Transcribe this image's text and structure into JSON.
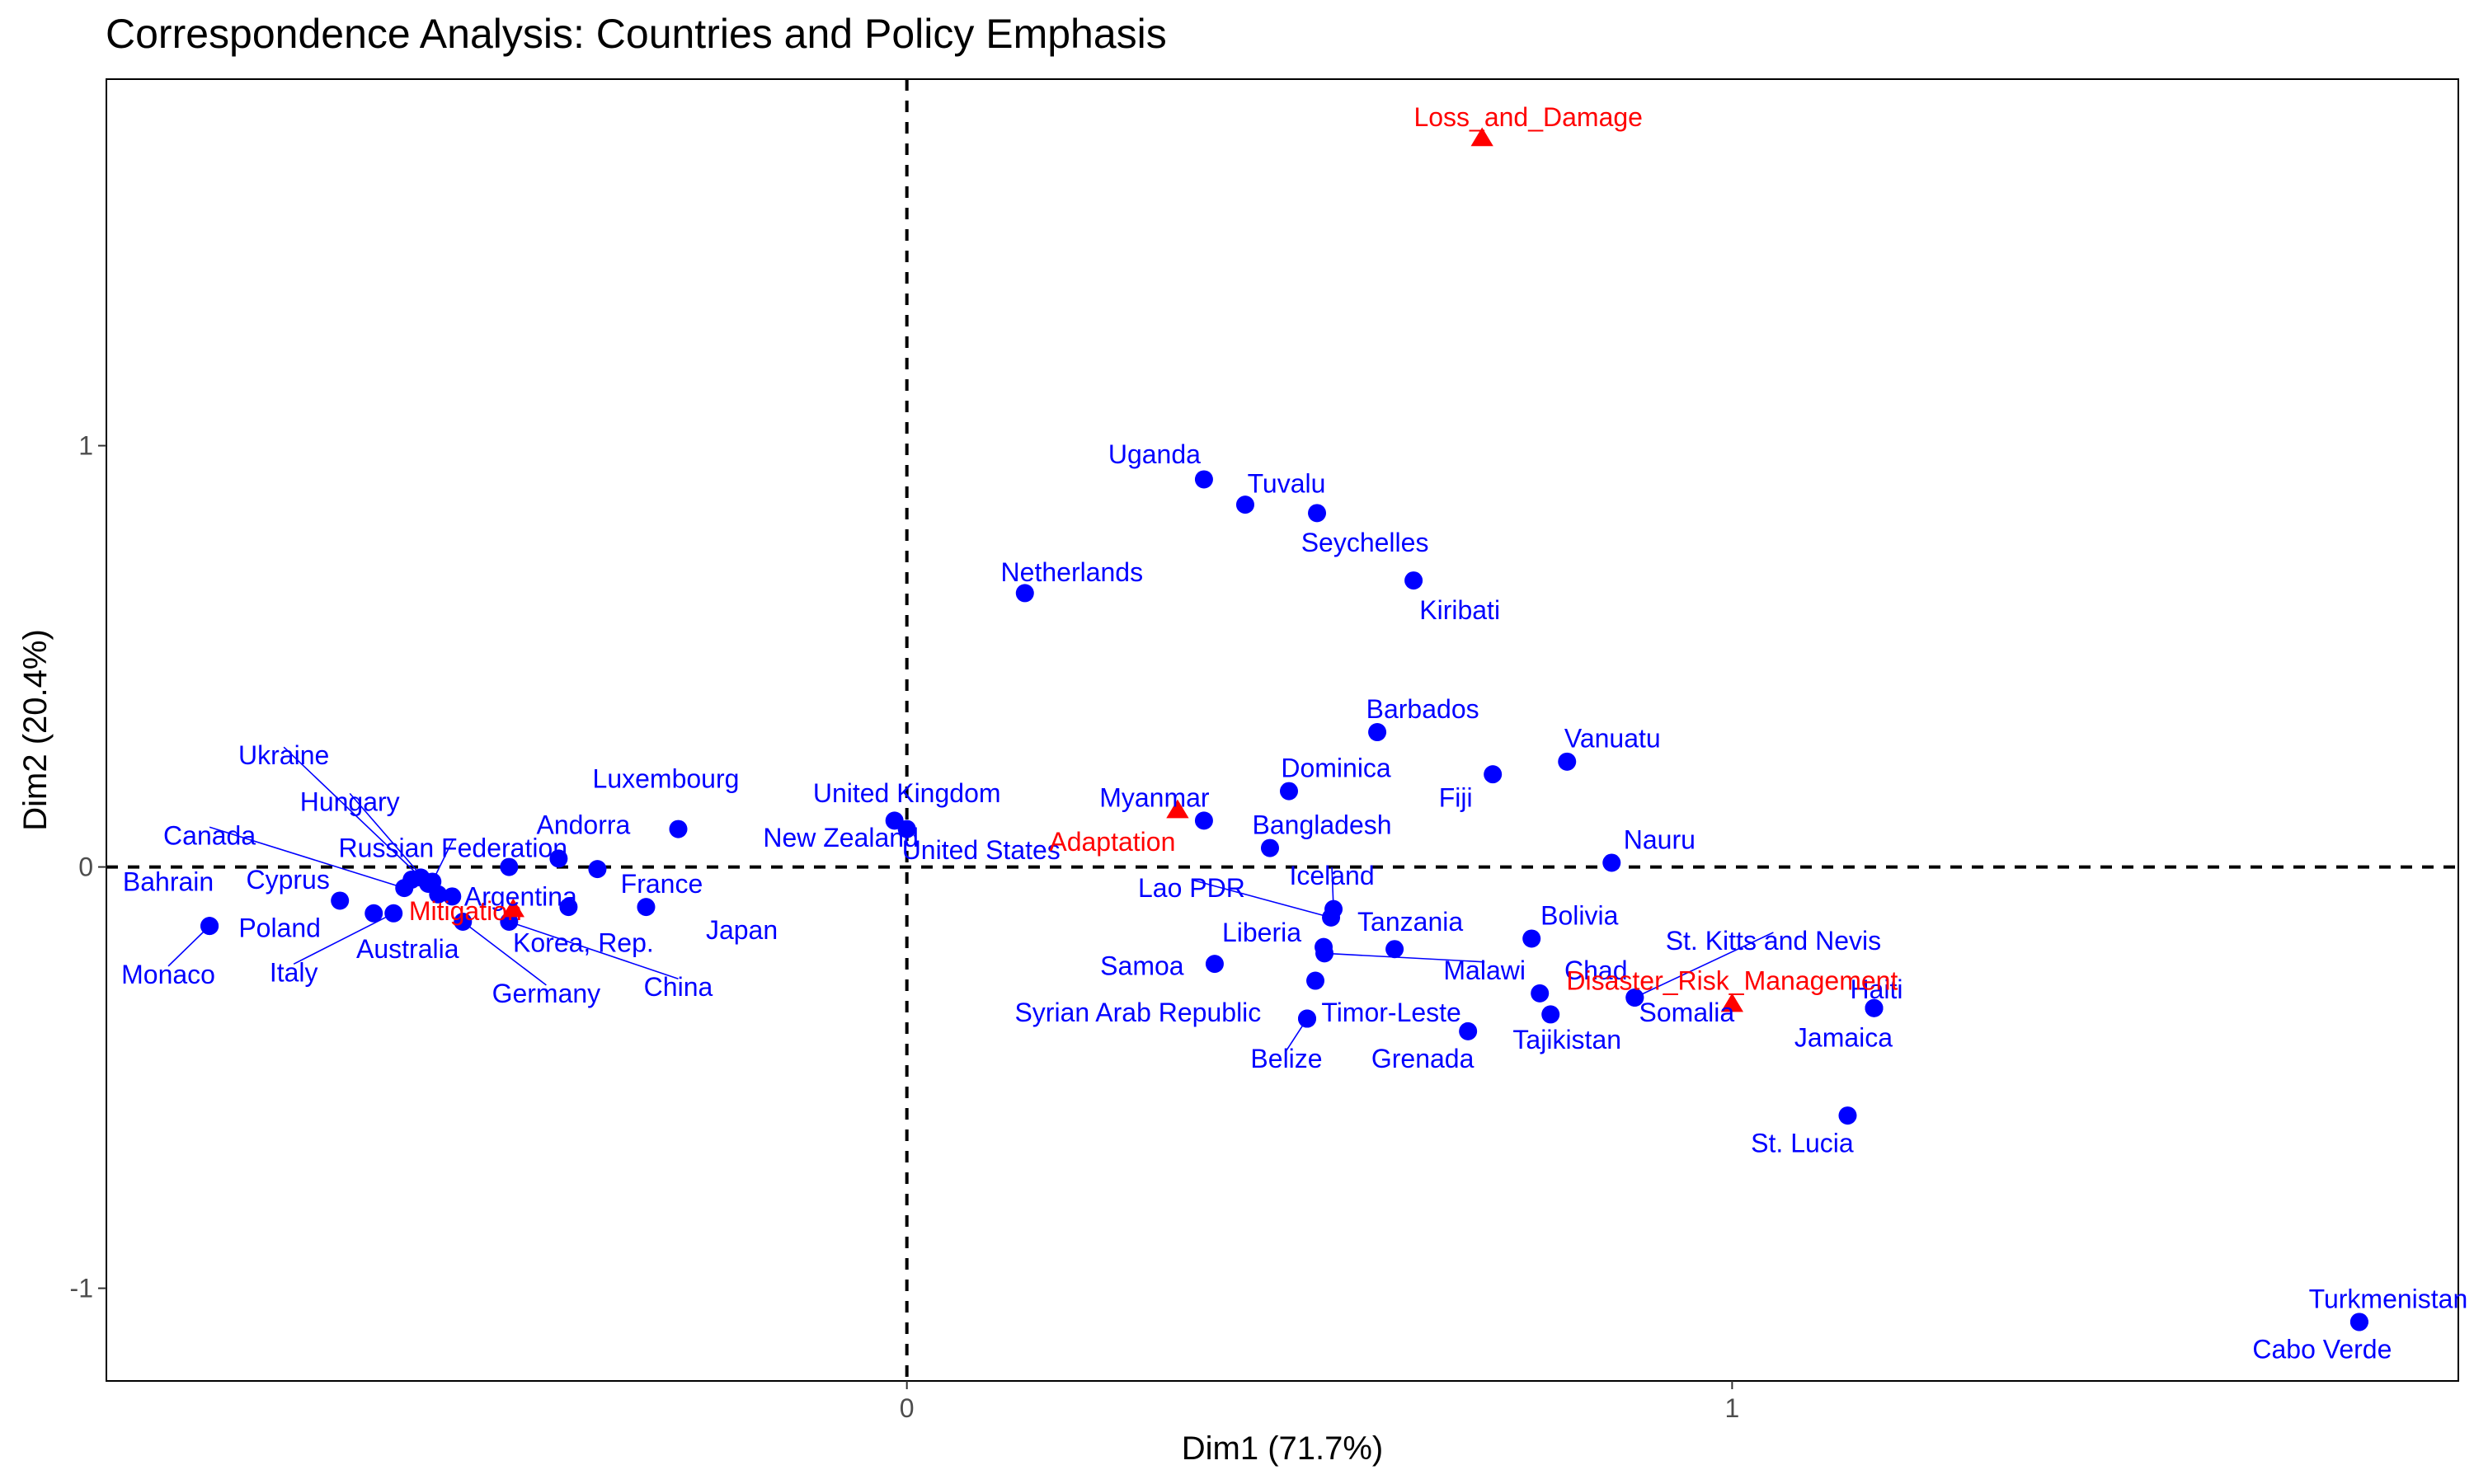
{
  "chart_data": {
    "type": "scatter",
    "title": "Correspondence Analysis: Countries and Policy Emphasis",
    "xlabel": "Dim1 (71.7%)",
    "ylabel": "Dim2 (20.4%)",
    "xlim": [
      -0.97,
      1.88
    ],
    "ylim": [
      -1.22,
      1.87
    ],
    "xticks": [
      0,
      1
    ],
    "yticks": [
      -1,
      0,
      1
    ],
    "xtick_labels": [
      "0",
      "1"
    ],
    "ytick_labels": [
      "-1",
      "0",
      "1"
    ],
    "grid": false,
    "reference_lines": {
      "x": 0,
      "y": 0
    },
    "colors": {
      "rows": "#0000ff",
      "columns": "#ff0000",
      "axes": "#000000"
    },
    "series": [
      {
        "role": "rows",
        "marker": "circle",
        "points": [
          {
            "label": "Uganda",
            "x": 0.36,
            "y": 0.92,
            "lx": 0.3,
            "ly": 0.98
          },
          {
            "label": "Tuvalu",
            "x": 0.41,
            "y": 0.86,
            "lx": 0.46,
            "ly": 0.91
          },
          {
            "label": "Seychelles",
            "x": 0.497,
            "y": 0.84,
            "lx": 0.555,
            "ly": 0.77
          },
          {
            "label": "Kiribati",
            "x": 0.614,
            "y": 0.68,
            "lx": 0.67,
            "ly": 0.61
          },
          {
            "label": "Netherlands",
            "x": 0.143,
            "y": 0.65,
            "lx": 0.2,
            "ly": 0.7
          },
          {
            "label": "Barbados",
            "x": 0.57,
            "y": 0.32,
            "lx": 0.625,
            "ly": 0.375
          },
          {
            "label": "Vanuatu",
            "x": 0.8,
            "y": 0.25,
            "lx": 0.855,
            "ly": 0.305
          },
          {
            "label": "Fiji",
            "x": 0.71,
            "y": 0.22,
            "lx": 0.665,
            "ly": 0.165
          },
          {
            "label": "Dominica",
            "x": 0.463,
            "y": 0.18,
            "lx": 0.52,
            "ly": 0.235
          },
          {
            "label": "Myanmar",
            "x": 0.36,
            "y": 0.11,
            "lx": 0.3,
            "ly": 0.165
          },
          {
            "label": "United States",
            "x": -0.015,
            "y": 0.11,
            "lx": 0.09,
            "ly": 0.04
          },
          {
            "label": "Bangladesh",
            "x": 0.44,
            "y": 0.045,
            "lx": 0.503,
            "ly": 0.1
          },
          {
            "label": "Nauru",
            "x": 0.854,
            "y": 0.01,
            "lx": 0.912,
            "ly": 0.065
          },
          {
            "label": "Iceland",
            "x": 0.517,
            "y": -0.1,
            "lx": 0.515,
            "ly": -0.02,
            "leader": true
          },
          {
            "label": "Lao PDR",
            "x": 0.514,
            "y": -0.12,
            "lx": 0.345,
            "ly": -0.05,
            "leader": true
          },
          {
            "label": "Tanzania",
            "x": 0.591,
            "y": -0.195,
            "lx": 0.61,
            "ly": -0.13
          },
          {
            "label": "Bolivia",
            "x": 0.757,
            "y": -0.17,
            "lx": 0.815,
            "ly": -0.115
          },
          {
            "label": "Liberia",
            "x": 0.505,
            "y": -0.19,
            "lx": 0.43,
            "ly": -0.155
          },
          {
            "label": "Samoa",
            "x": 0.373,
            "y": -0.23,
            "lx": 0.285,
            "ly": -0.235
          },
          {
            "label": "Malawi",
            "x": 0.506,
            "y": -0.205,
            "lx": 0.7,
            "ly": -0.245,
            "leader": true
          },
          {
            "label": "St. Kitts and Nevis",
            "x": 0.882,
            "y": -0.31,
            "lx": 1.05,
            "ly": -0.175,
            "leader": true
          },
          {
            "label": "Chad",
            "x": 0.767,
            "y": -0.3,
            "lx": 0.835,
            "ly": -0.245
          },
          {
            "label": "Timor-Leste",
            "x": 0.495,
            "y": -0.27,
            "lx": 0.587,
            "ly": -0.345
          },
          {
            "label": "Syrian Arab Republic",
            "x": 0.485,
            "y": -0.36,
            "lx": 0.28,
            "ly": -0.345
          },
          {
            "label": "Tajikistan",
            "x": 0.78,
            "y": -0.35,
            "lx": 0.8,
            "ly": -0.41
          },
          {
            "label": "Grenada",
            "x": 0.68,
            "y": -0.39,
            "lx": 0.625,
            "ly": -0.455
          },
          {
            "label": "Belize",
            "x": 0.485,
            "y": -0.36,
            "lx": 0.46,
            "ly": -0.455,
            "leader": true
          },
          {
            "label": "Somalia",
            "x": 0.882,
            "y": -0.31,
            "lx": 0.945,
            "ly": -0.345
          },
          {
            "label": "Haiti",
            "x": 1.172,
            "y": -0.335,
            "lx": 1.175,
            "ly": -0.29
          },
          {
            "label": "Jamaica",
            "x": 1.172,
            "y": -0.335,
            "lx": 1.135,
            "ly": -0.405
          },
          {
            "label": "St. Lucia",
            "x": 1.14,
            "y": -0.59,
            "lx": 1.085,
            "ly": -0.655
          },
          {
            "label": "Turkmenistan",
            "x": 1.76,
            "y": -1.08,
            "lx": 1.795,
            "ly": -1.025
          },
          {
            "label": "Cabo Verde",
            "x": 1.76,
            "y": -1.08,
            "lx": 1.715,
            "ly": -1.145
          },
          {
            "label": "United Kingdom",
            "x": 0.0,
            "y": 0.09,
            "lx": 0.0,
            "ly": 0.175
          },
          {
            "label": "New Zealand",
            "x": -0.277,
            "y": 0.09,
            "lx": -0.08,
            "ly": 0.07
          },
          {
            "label": "Luxembourg",
            "x": -0.422,
            "y": 0.02,
            "lx": -0.292,
            "ly": 0.21
          },
          {
            "label": "Andorra",
            "x": -0.482,
            "y": 0.0,
            "lx": -0.392,
            "ly": 0.1
          },
          {
            "label": "France",
            "x": -0.375,
            "y": -0.005,
            "lx": -0.297,
            "ly": -0.04
          },
          {
            "label": "Japan",
            "x": -0.316,
            "y": -0.095,
            "lx": -0.2,
            "ly": -0.15
          },
          {
            "label": "China",
            "x": -0.482,
            "y": -0.13,
            "lx": -0.277,
            "ly": -0.285,
            "leader": true
          },
          {
            "label": "Korea, Rep.",
            "x": -0.41,
            "y": -0.095,
            "lx": -0.392,
            "ly": -0.18
          },
          {
            "label": "Germany",
            "x": -0.538,
            "y": -0.13,
            "lx": -0.437,
            "ly": -0.3,
            "leader": true
          },
          {
            "label": "Argentina",
            "x": -0.551,
            "y": -0.07,
            "lx": -0.468,
            "ly": -0.07
          },
          {
            "label": "Russian Federation",
            "x": -0.575,
            "y": -0.035,
            "lx": -0.55,
            "ly": 0.045,
            "leader": true
          },
          {
            "label": "Australia",
            "x": -0.568,
            "y": -0.065,
            "lx": -0.605,
            "ly": -0.195
          },
          {
            "label": "Hungary",
            "x": -0.58,
            "y": -0.04,
            "lx": -0.675,
            "ly": 0.155,
            "leader": true
          },
          {
            "label": "Ukraine",
            "x": -0.589,
            "y": -0.025,
            "lx": -0.755,
            "ly": 0.265,
            "leader": true
          },
          {
            "label": "Canada",
            "x": -0.609,
            "y": -0.05,
            "lx": -0.845,
            "ly": 0.075,
            "leader": true
          },
          {
            "label": "Cyprus",
            "x": -0.687,
            "y": -0.08,
            "lx": -0.75,
            "ly": -0.03
          },
          {
            "label": "Italy",
            "x": -0.622,
            "y": -0.11,
            "lx": -0.743,
            "ly": -0.25,
            "leader": true
          },
          {
            "label": "Poland",
            "x": -0.646,
            "y": -0.11,
            "lx": -0.76,
            "ly": -0.145
          },
          {
            "label": "Bahrain",
            "x": -0.845,
            "y": -0.14,
            "lx": -0.895,
            "ly": -0.035
          },
          {
            "label": "Monaco",
            "x": -0.845,
            "y": -0.14,
            "lx": -0.895,
            "ly": -0.255,
            "leader": true
          },
          {
            "label": "",
            "x": -0.6,
            "y": -0.03
          }
        ]
      },
      {
        "role": "columns",
        "marker": "triangle",
        "points": [
          {
            "label": "Loss_and_Damage",
            "x": 0.697,
            "y": 1.73,
            "lx": 0.753,
            "ly": 1.78
          },
          {
            "label": "Adaptation",
            "x": 0.328,
            "y": 0.135,
            "lx": 0.249,
            "ly": 0.06
          },
          {
            "label": "Mitigation",
            "x": -0.477,
            "y": -0.1,
            "lx": -0.535,
            "ly": -0.105
          },
          {
            "label": "Disaster_Risk_Management",
            "x": 1.0,
            "y": -0.325,
            "lx": 1.0,
            "ly": -0.27
          }
        ]
      }
    ]
  }
}
